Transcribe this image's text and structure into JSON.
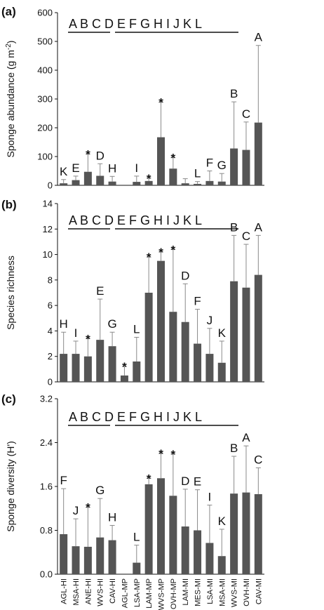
{
  "chart_data": [
    {
      "type": "bar",
      "panel_label": "(a)",
      "ylabel": "Sponge abundance (g m",
      "ylabel_sup": "-2",
      "ylabel_close": ")",
      "ylim": [
        0,
        600
      ],
      "yticks": [
        "0",
        "100",
        "200",
        "300",
        "400",
        "500",
        "600"
      ],
      "group_text": "A B C D E F G H I J K L",
      "categories": [
        "AGL-HI",
        "MSA-HI",
        "ANE-HI",
        "WVS-HI",
        "CAV-HI",
        "AGL-MP",
        "LSA-MP",
        "LAM-MP",
        "WVS-MP",
        "OVH-MP",
        "LAM-MI",
        "MES-MI",
        "LSA-MI",
        "MSA-MI",
        "WVS-MI",
        "OVH-MI",
        "CAV-MI"
      ],
      "values": [
        7,
        18,
        47,
        33,
        13,
        0,
        12,
        15,
        167,
        58,
        7,
        5,
        15,
        13,
        128,
        123,
        218
      ],
      "errors": [
        13,
        14,
        62,
        42,
        18,
        0,
        20,
        10,
        122,
        38,
        16,
        8,
        35,
        28,
        162,
        97,
        268
      ],
      "letters": [
        "K",
        "E",
        "",
        "D",
        "H",
        "",
        "I",
        "",
        "",
        "",
        "",
        "L",
        "F",
        "G",
        "B",
        "C",
        "A"
      ],
      "stars": [
        false,
        false,
        true,
        false,
        false,
        false,
        false,
        true,
        true,
        true,
        false,
        false,
        false,
        false,
        false,
        false,
        false
      ]
    },
    {
      "type": "bar",
      "panel_label": "(b)",
      "ylabel": "Species richness",
      "ylim": [
        0,
        14
      ],
      "yticks": [
        "0",
        "2",
        "4",
        "6",
        "8",
        "10",
        "12",
        "14"
      ],
      "group_text": "A B C D E F G H I J K L",
      "categories": [
        "AGL-HI",
        "MSA-HI",
        "ANE-HI",
        "WVS-HI",
        "CAV-HI",
        "AGL-MP",
        "LSA-MP",
        "LAM-MP",
        "WVS-MP",
        "OVH-MP",
        "LAM-MI",
        "MES-MI",
        "LSA-MI",
        "MSA-MI",
        "WVS-MI",
        "OVH-MI",
        "CAV-MI"
      ],
      "values": [
        2.2,
        2.2,
        2.0,
        3.3,
        2.8,
        0.5,
        1.6,
        7.0,
        9.5,
        5.5,
        4.7,
        3.0,
        2.2,
        1.5,
        7.9,
        7.4,
        8.4
      ],
      "errors": [
        1.7,
        1.0,
        1.4,
        3.2,
        1.1,
        0.7,
        1.9,
        2.8,
        0.7,
        4.9,
        3.0,
        2.7,
        2.0,
        1.7,
        3.6,
        3.4,
        3.1
      ],
      "letters": [
        "H",
        "I",
        "",
        "E",
        "G",
        "",
        "L",
        "",
        "",
        "",
        "D",
        "F",
        "J",
        "K",
        "B",
        "C",
        "A"
      ],
      "stars": [
        false,
        false,
        true,
        false,
        false,
        true,
        false,
        true,
        true,
        true,
        false,
        false,
        false,
        false,
        false,
        false,
        false
      ]
    },
    {
      "type": "bar",
      "panel_label": "(c)",
      "ylabel": "Sponge diversity (H')",
      "ylim": [
        0,
        3.2
      ],
      "yticks": [
        "0.0",
        "0.8",
        "1.6",
        "2.4",
        "3.2"
      ],
      "group_text": "A B C D E F G H I J K L",
      "categories": [
        "AGL-HI",
        "MSA-HI",
        "ANE-HI",
        "WVS-HI",
        "CAV-HI",
        "AGL-MP",
        "LSA-MP",
        "LAM-MP",
        "WVS-MP",
        "OVH-MP",
        "LAM-MI",
        "MES-MI",
        "LSA-MI",
        "MSA-MI",
        "WVS-MI",
        "OVH-MI",
        "CAV-MI"
      ],
      "values": [
        0.73,
        0.51,
        0.5,
        0.67,
        0.62,
        0,
        0.21,
        1.64,
        1.75,
        1.43,
        0.87,
        0.8,
        0.57,
        0.33,
        1.47,
        1.49,
        1.46
      ],
      "errors": [
        0.83,
        0.5,
        0.72,
        0.71,
        0.27,
        0,
        0.32,
        0.11,
        0.45,
        0.76,
        0.68,
        0.74,
        0.69,
        0.49,
        0.68,
        0.85,
        0.48
      ],
      "letters": [
        "F",
        "J",
        "",
        "G",
        "H",
        "",
        "L",
        "",
        "",
        "",
        "D",
        "E",
        "I",
        "K",
        "B",
        "A",
        "C"
      ],
      "stars": [
        false,
        false,
        true,
        false,
        false,
        false,
        false,
        true,
        true,
        true,
        false,
        false,
        false,
        false,
        false,
        false,
        false
      ]
    }
  ],
  "colors": {
    "bar": "#555555",
    "axis": "#111111",
    "error": "#8a8a8a"
  }
}
